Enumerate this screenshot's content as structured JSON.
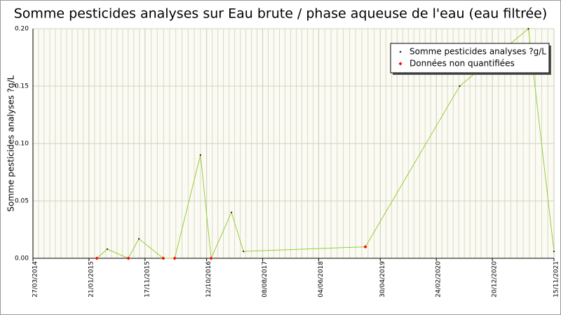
{
  "chart_data": {
    "type": "line",
    "title": "Somme pesticides analyses sur Eau brute / phase aqueuse de l'eau (eau filtrée)",
    "y_label": "Somme pesticides analyses ?g/L",
    "x": [
      "04/03/2015",
      "29/04/2015",
      "20/08/2015",
      "15/10/2015",
      "23/02/2016",
      "24/04/2016",
      "09/09/2016",
      "05/11/2016",
      "22/02/2017",
      "27/04/2017",
      "09/02/2019",
      "28/06/2020",
      "01/07/2021",
      "15/11/2021"
    ],
    "series": [
      {
        "name": "Somme pesticides analyses ?g/L",
        "color": "#000000",
        "line_color": "#99cc33",
        "values": [
          0,
          0.008,
          0,
          0.017,
          0,
          0,
          0.09,
          0,
          0.04,
          0.006,
          0.01,
          0.15,
          0.2,
          0.006
        ]
      },
      {
        "name": "Données non quantifiées",
        "color": "#ff0000",
        "values": [
          0,
          null,
          0,
          null,
          0,
          0,
          null,
          0,
          null,
          null,
          0.01,
          null,
          null,
          null
        ]
      }
    ],
    "xlim": [
      "27/03/2014",
      "15/11/2021"
    ],
    "xticks": [
      "27/03/2014",
      "21/01/2015",
      "17/11/2015",
      "12/10/2016",
      "08/08/2017",
      "04/06/2018",
      "30/04/2019",
      "24/02/2020",
      "20/12/2020",
      "15/11/2021"
    ],
    "ylim": [
      0,
      0.2
    ],
    "yticks": [
      {
        "value": 0,
        "label": "0.00"
      },
      0.05,
      {
        "value": 0.1,
        "label": "0.10"
      },
      0.15,
      {
        "value": 0.2,
        "label": "0.20"
      }
    ],
    "grid": true,
    "legend": "upper right"
  }
}
